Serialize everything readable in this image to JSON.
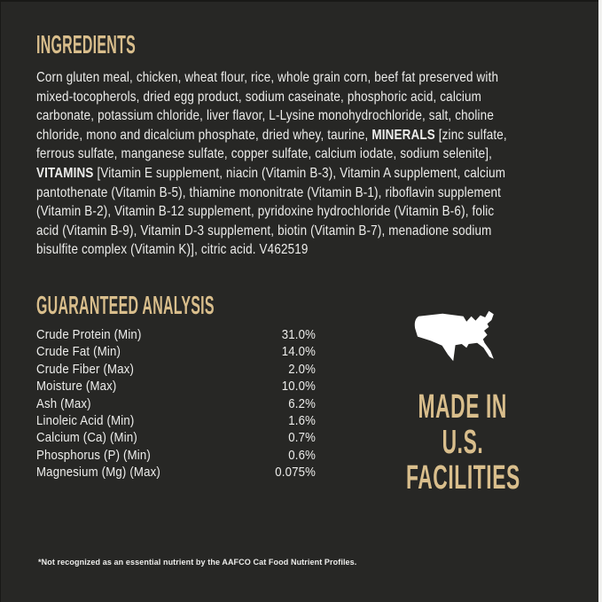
{
  "label": {
    "bg_color": "#272725",
    "accent_color": "#d9be8c",
    "text_color": "#ededeb",
    "map_color": "#ffffff"
  },
  "ingredients": {
    "heading": "INGREDIENTS",
    "lines": [
      [
        {
          "t": "Corn gluten meal, chicken, wheat flour, rice, whole grain corn, beef fat preserved with"
        }
      ],
      [
        {
          "t": "mixed-tocopherols, dried egg product, sodium caseinate, phosphoric acid, calcium"
        }
      ],
      [
        {
          "t": "carbonate, potassium chloride, liver flavor, L-Lysine monohydrochloride, salt, choline"
        }
      ],
      [
        {
          "t": "chloride, mono and dicalcium phosphate, dried whey, taurine, "
        },
        {
          "t": "MINERALS",
          "b": true
        },
        {
          "t": " [zinc sulfate,"
        }
      ],
      [
        {
          "t": "ferrous sulfate, manganese sulfate, copper sulfate, calcium iodate, sodium selenite],"
        }
      ],
      [
        {
          "t": "VITAMINS",
          "b": true
        },
        {
          "t": " [Vitamin E supplement, niacin (Vitamin B-3), Vitamin A supplement, calcium"
        }
      ],
      [
        {
          "t": "pantothenate (Vitamin B-5), thiamine mononitrate (Vitamin B-1), riboflavin supplement"
        }
      ],
      [
        {
          "t": "(Vitamin B-2), Vitamin B-12 supplement, pyridoxine hydrochloride (Vitamin B-6), folic"
        }
      ],
      [
        {
          "t": "acid (Vitamin B-9), Vitamin D-3 supplement, biotin (Vitamin B-7), menadione sodium"
        }
      ],
      [
        {
          "t": "bisulfite complex (Vitamin K)], citric acid. V462519"
        }
      ]
    ]
  },
  "guaranteed_analysis": {
    "heading": "GUARANTEED ANALYSIS",
    "rows": [
      {
        "label": "Crude Protein (Min)",
        "value": "31.0%"
      },
      {
        "label": "Crude Fat (Min)",
        "value": "14.0%"
      },
      {
        "label": "Crude Fiber (Max)",
        "value": "2.0%"
      },
      {
        "label": "Moisture (Max)",
        "value": "10.0%"
      },
      {
        "label": "Ash (Max)",
        "value": "6.2%"
      },
      {
        "label": "Linoleic Acid (Min)",
        "value": "1.6%"
      },
      {
        "label": "Calcium (Ca) (Min)",
        "value": "0.7%"
      },
      {
        "label": "Phosphorus (P) (Min)",
        "value": "0.6%"
      },
      {
        "label": "Magnesium (Mg) (Max)",
        "value": "0.075%"
      }
    ]
  },
  "made_in": {
    "icon": "usa-map-icon",
    "lines": [
      "MADE IN",
      "U.S.",
      "FACILITIES"
    ]
  },
  "footnote": "*Not recognized as an essential nutrient by the AAFCO Cat Food Nutrient Profiles."
}
